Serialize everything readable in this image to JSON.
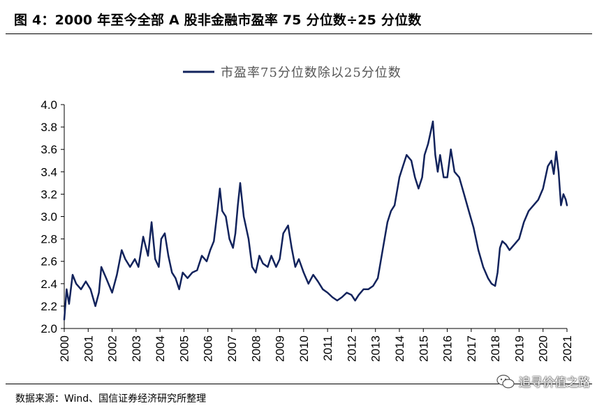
{
  "figure": {
    "title": "图 4：2000 年至今全部 A 股非金融市盈率 75 分位数÷25 分位数",
    "source": "数据来源：Wind、国信证券经济研究所整理",
    "watermark": "追寻价值之路"
  },
  "colors": {
    "series": "#12235c",
    "axis": "#000000"
  },
  "chart_data": {
    "type": "line",
    "title": "",
    "xlabel": "",
    "ylabel": "",
    "ylim": [
      2.0,
      4.0
    ],
    "xlim": [
      2000,
      2021
    ],
    "yticks": [
      "2.0",
      "2.2",
      "2.4",
      "2.6",
      "2.8",
      "3.0",
      "3.2",
      "3.4",
      "3.6",
      "3.8",
      "4.0"
    ],
    "xticks": [
      "2000",
      "2001",
      "2002",
      "2003",
      "2004",
      "2005",
      "2006",
      "2007",
      "2008",
      "2009",
      "2010",
      "2011",
      "2012",
      "2013",
      "2014",
      "2015",
      "2016",
      "2017",
      "2018",
      "2019",
      "2020",
      "2021"
    ],
    "legend": "top-center",
    "grid": false,
    "series": [
      {
        "name": "市盈率75分位数除以25分位数",
        "x": [
          2000.0,
          2000.1,
          2000.2,
          2000.35,
          2000.5,
          2000.7,
          2000.9,
          2001.1,
          2001.3,
          2001.45,
          2001.55,
          2001.75,
          2002.0,
          2002.2,
          2002.4,
          2002.55,
          2002.75,
          2002.95,
          2003.1,
          2003.3,
          2003.5,
          2003.65,
          2003.8,
          2003.95,
          2004.05,
          2004.2,
          2004.35,
          2004.5,
          2004.65,
          2004.8,
          2004.95,
          2005.15,
          2005.35,
          2005.55,
          2005.75,
          2005.95,
          2006.1,
          2006.25,
          2006.4,
          2006.5,
          2006.6,
          2006.75,
          2006.9,
          2007.05,
          2007.15,
          2007.25,
          2007.35,
          2007.5,
          2007.7,
          2007.85,
          2008.0,
          2008.15,
          2008.3,
          2008.5,
          2008.65,
          2008.85,
          2009.0,
          2009.15,
          2009.35,
          2009.5,
          2009.65,
          2009.8,
          2010.0,
          2010.2,
          2010.4,
          2010.6,
          2010.8,
          2011.0,
          2011.2,
          2011.4,
          2011.6,
          2011.8,
          2012.0,
          2012.15,
          2012.3,
          2012.5,
          2012.7,
          2012.9,
          2013.1,
          2013.3,
          2013.5,
          2013.65,
          2013.8,
          2014.0,
          2014.15,
          2014.3,
          2014.5,
          2014.65,
          2014.8,
          2014.95,
          2015.05,
          2015.2,
          2015.3,
          2015.4,
          2015.5,
          2015.6,
          2015.7,
          2015.85,
          2016.0,
          2016.15,
          2016.3,
          2016.5,
          2016.7,
          2016.9,
          2017.1,
          2017.3,
          2017.5,
          2017.7,
          2017.85,
          2018.0,
          2018.1,
          2018.2,
          2018.3,
          2018.45,
          2018.6,
          2018.8,
          2019.0,
          2019.2,
          2019.4,
          2019.6,
          2019.8,
          2020.0,
          2020.2,
          2020.35,
          2020.45,
          2020.55,
          2020.65,
          2020.75,
          2020.85,
          2020.95,
          2021.0
        ],
        "values": [
          2.08,
          2.35,
          2.22,
          2.48,
          2.4,
          2.35,
          2.42,
          2.35,
          2.2,
          2.32,
          2.55,
          2.45,
          2.32,
          2.48,
          2.7,
          2.62,
          2.55,
          2.62,
          2.55,
          2.82,
          2.65,
          2.95,
          2.62,
          2.55,
          2.8,
          2.85,
          2.65,
          2.5,
          2.45,
          2.35,
          2.5,
          2.45,
          2.5,
          2.52,
          2.65,
          2.6,
          2.7,
          2.78,
          3.05,
          3.25,
          3.05,
          3.0,
          2.8,
          2.72,
          2.85,
          3.1,
          3.3,
          3.0,
          2.8,
          2.55,
          2.5,
          2.65,
          2.58,
          2.55,
          2.65,
          2.55,
          2.62,
          2.85,
          2.92,
          2.72,
          2.55,
          2.62,
          2.5,
          2.4,
          2.48,
          2.42,
          2.35,
          2.32,
          2.28,
          2.25,
          2.28,
          2.32,
          2.3,
          2.25,
          2.3,
          2.35,
          2.35,
          2.38,
          2.45,
          2.7,
          2.95,
          3.05,
          3.1,
          3.35,
          3.45,
          3.55,
          3.5,
          3.35,
          3.25,
          3.35,
          3.55,
          3.65,
          3.75,
          3.85,
          3.55,
          3.4,
          3.55,
          3.35,
          3.35,
          3.6,
          3.4,
          3.35,
          3.2,
          3.05,
          2.9,
          2.7,
          2.55,
          2.45,
          2.4,
          2.38,
          2.5,
          2.72,
          2.78,
          2.75,
          2.7,
          2.75,
          2.8,
          2.95,
          3.05,
          3.1,
          3.15,
          3.25,
          3.45,
          3.5,
          3.38,
          3.58,
          3.4,
          3.1,
          3.2,
          3.15,
          3.1
        ]
      }
    ]
  }
}
